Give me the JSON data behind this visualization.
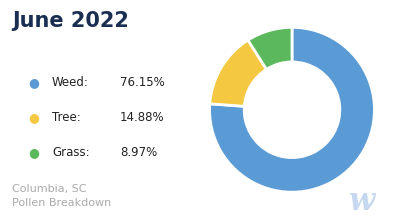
{
  "title": "June 2022",
  "title_color": "#1a2e52",
  "title_fontsize": 15,
  "title_fontweight": "bold",
  "labels": [
    "Weed",
    "Tree",
    "Grass"
  ],
  "values": [
    76.15,
    14.88,
    8.97
  ],
  "colors": [
    "#5b9bd5",
    "#f5c842",
    "#5cb85c"
  ],
  "legend_names": [
    "Weed",
    "Tree",
    "Grass"
  ],
  "legend_values": [
    "76.15%",
    "14.88%",
    "8.97%"
  ],
  "legend_dot_colors": [
    "#5b9bd5",
    "#f5c842",
    "#5cb85c"
  ],
  "footer_text": "Columbia, SC\nPollen Breakdown",
  "footer_color": "#aaaaaa",
  "footer_fontsize": 8,
  "watermark_text": "w",
  "watermark_color": "#c5d8f0",
  "background_color": "#ffffff",
  "donut_width": 0.42,
  "startangle": 90
}
